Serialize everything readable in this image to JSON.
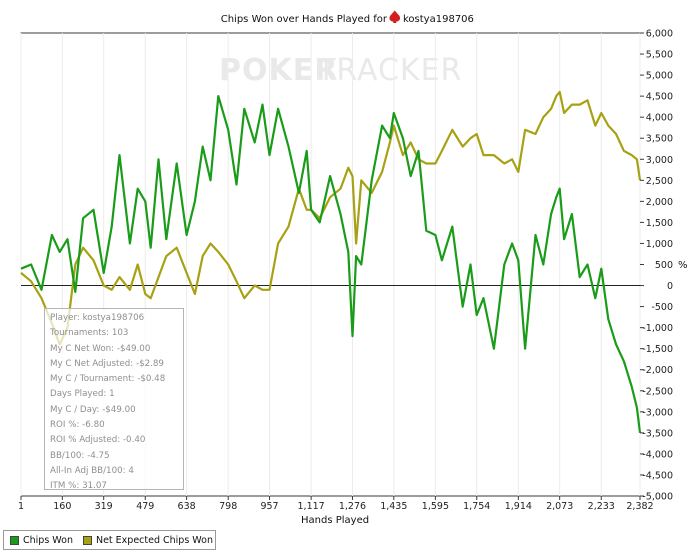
{
  "chart_data": {
    "type": "line",
    "title": "Chips Won over Hands Played for",
    "player": "kostya198706",
    "watermark": {
      "strong": "POKER",
      "light": "TRACKER"
    },
    "xlabel": "Hands Played",
    "ylabel": "%",
    "xlim": [
      1,
      2382
    ],
    "ylim": [
      -5000,
      6000
    ],
    "x_ticks": [
      1,
      160,
      319,
      479,
      638,
      798,
      957,
      1117,
      1276,
      1435,
      1595,
      1754,
      1914,
      2073,
      2233,
      2382
    ],
    "x_tick_labels": [
      "1",
      "160",
      "319",
      "479",
      "638",
      "798",
      "957",
      "1,117",
      "1,276",
      "1,435",
      "1,595",
      "1,754",
      "1,914",
      "2,073",
      "2,233",
      "2,382"
    ],
    "y_ticks": [
      -5000,
      -4500,
      -4000,
      -3500,
      -3000,
      -2500,
      -2000,
      -1500,
      -1000,
      -500,
      0,
      500,
      1000,
      1500,
      2000,
      2500,
      3000,
      3500,
      4000,
      4500,
      5000,
      5500,
      6000
    ],
    "y_tick_labels": [
      "-5,000",
      "-4,500",
      "-4,000",
      "-3,500",
      "-3,000",
      "-2,500",
      "-2,000",
      "-1,500",
      "-1,000",
      "-500",
      "0",
      "500",
      "1,000",
      "1,500",
      "2,000",
      "2,500",
      "3,000",
      "3,500",
      "4,000",
      "4,500",
      "5,000",
      "5,500",
      "6,000"
    ],
    "series": [
      {
        "name": "Chips Won",
        "color": "#1a9c1a",
        "x": [
          1,
          40,
          80,
          120,
          150,
          180,
          210,
          240,
          280,
          319,
          350,
          380,
          420,
          450,
          479,
          500,
          530,
          560,
          600,
          638,
          670,
          700,
          730,
          760,
          798,
          830,
          860,
          900,
          930,
          957,
          990,
          1030,
          1070,
          1100,
          1117,
          1150,
          1190,
          1230,
          1260,
          1276,
          1290,
          1310,
          1350,
          1390,
          1420,
          1435,
          1470,
          1500,
          1530,
          1560,
          1595,
          1620,
          1660,
          1700,
          1730,
          1754,
          1780,
          1820,
          1860,
          1890,
          1914,
          1940,
          1980,
          2010,
          2040,
          2060,
          2073,
          2090,
          2120,
          2150,
          2180,
          2210,
          2233,
          2260,
          2290,
          2320,
          2350,
          2370,
          2382
        ],
        "y": [
          400,
          500,
          -100,
          1200,
          800,
          1100,
          -150,
          1600,
          1800,
          300,
          1400,
          3100,
          1000,
          2300,
          2000,
          900,
          3000,
          1100,
          2900,
          1200,
          2000,
          3300,
          2500,
          4500,
          3700,
          2400,
          4200,
          3400,
          4300,
          3100,
          4200,
          3300,
          2200,
          3200,
          1800,
          1500,
          2600,
          1700,
          800,
          -1200,
          700,
          500,
          2500,
          3800,
          3500,
          4100,
          3500,
          2600,
          3200,
          1300,
          1200,
          600,
          1400,
          -500,
          500,
          -700,
          -300,
          -1500,
          500,
          1000,
          600,
          -1500,
          1200,
          500,
          1700,
          2100,
          2300,
          1100,
          1700,
          200,
          500,
          -300,
          400,
          -800,
          -1400,
          -1800,
          -2400,
          -2900,
          -3500
        ]
      },
      {
        "name": "Net Expected Chips Won",
        "color": "#a7a113",
        "x": [
          1,
          40,
          80,
          120,
          150,
          180,
          210,
          240,
          280,
          319,
          350,
          380,
          420,
          450,
          479,
          500,
          530,
          560,
          600,
          638,
          670,
          700,
          730,
          760,
          798,
          830,
          860,
          900,
          930,
          957,
          990,
          1030,
          1070,
          1100,
          1117,
          1150,
          1190,
          1230,
          1260,
          1276,
          1290,
          1310,
          1350,
          1390,
          1420,
          1435,
          1470,
          1500,
          1530,
          1560,
          1595,
          1620,
          1660,
          1700,
          1730,
          1754,
          1780,
          1820,
          1860,
          1890,
          1914,
          1940,
          1980,
          2010,
          2040,
          2060,
          2073,
          2090,
          2120,
          2150,
          2180,
          2210,
          2233,
          2260,
          2290,
          2320,
          2350,
          2370,
          2382
        ],
        "y": [
          300,
          100,
          -300,
          -900,
          -1400,
          -1000,
          500,
          900,
          600,
          0,
          -100,
          200,
          -100,
          500,
          -200,
          -300,
          200,
          700,
          900,
          300,
          -200,
          700,
          1000,
          800,
          500,
          100,
          -300,
          0,
          -100,
          -100,
          1000,
          1400,
          2300,
          1800,
          1800,
          1600,
          2100,
          2300,
          2800,
          2600,
          1000,
          2500,
          2200,
          2700,
          3400,
          3800,
          3100,
          3400,
          3000,
          2900,
          2900,
          3200,
          3700,
          3300,
          3500,
          3600,
          3100,
          3100,
          2900,
          3000,
          2700,
          3700,
          3600,
          4000,
          4200,
          4500,
          4600,
          4100,
          4300,
          4300,
          4400,
          3800,
          4100,
          3800,
          3600,
          3200,
          3100,
          3000,
          2500
        ]
      }
    ],
    "stats": {
      "player": "Player: kostya198706",
      "tournaments": "Tournaments: 103",
      "net_won": "My C Net Won: -$49.00",
      "net_adjusted": "My C Net Adjusted: -$2.89",
      "per_tournament": "My C / Tournament: -$0.48",
      "days_played": "Days Played: 1",
      "per_day": "My C / Day: -$49.00",
      "roi": "ROI %: -6.80",
      "roi_adjusted": "ROI % Adjusted: -0.40",
      "bb100": "BB/100: -4.75",
      "allin_bb100": "All-In Adj BB/100: 4",
      "itm": "ITM %: 31.07"
    },
    "legend": [
      "Chips Won",
      "Net Expected Chips Won"
    ]
  }
}
